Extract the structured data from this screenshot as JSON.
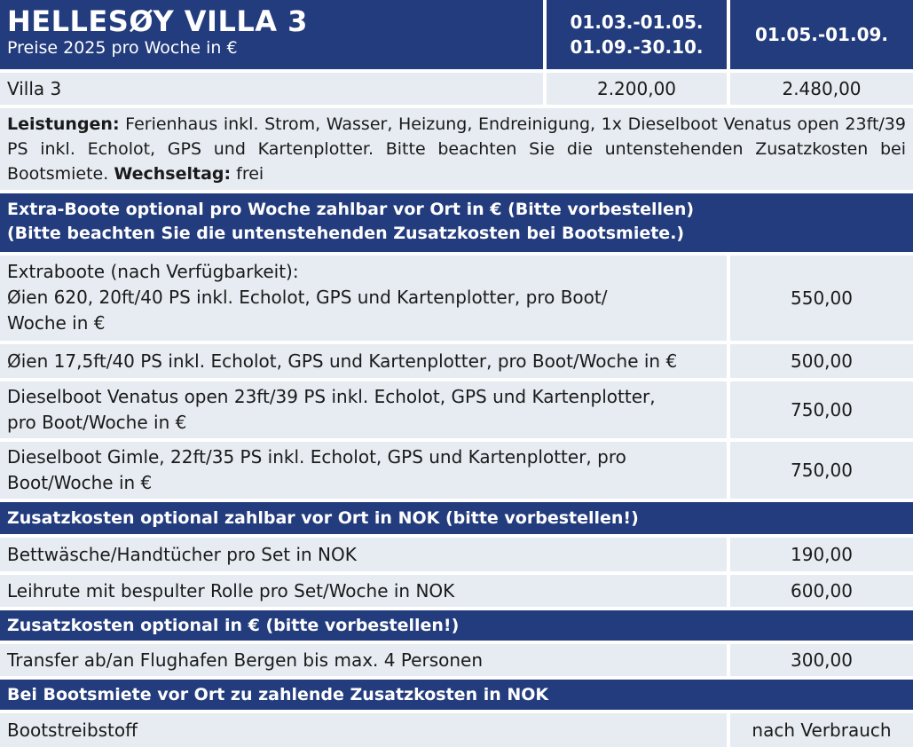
{
  "header": {
    "title": "HELLESØY VILLA 3",
    "subtitle": "Preise 2025 pro Woche in €",
    "season1_line1": "01.03.-01.05.",
    "season1_line2": "01.09.-30.10.",
    "season2": "01.05.-01.09."
  },
  "villa": {
    "label": "Villa 3",
    "price1": "2.200,00",
    "price2": "2.480,00"
  },
  "leistungen": {
    "label": "Leistungen:",
    "text": " Ferienhaus inkl. Strom, Wasser, Heizung, Endreinigung, 1x Dieselboot Venatus open 23ft/39 PS inkl. Echolot, GPS und Kartenplotter. Bitte beachten Sie die untenstehenden Zusatzkosten bei Bootsmiete. ",
    "wechsel_label": "Wechseltag:",
    "wechsel_value": " frei"
  },
  "extra_boote": {
    "heading_line1": "Extra-Boote optional pro Woche zahlbar vor Ort in € (Bitte vorbestellen)",
    "heading_line2": "(Bitte beachten Sie die untenstehenden Zusatzkosten bei Bootsmiete.)",
    "items": [
      {
        "line1": "Extraboote (nach Verfügbarkeit):",
        "line2": "Øien 620, 20ft/40 PS inkl. Echolot, GPS und Kartenplotter, pro Boot/",
        "line3": "Woche in €",
        "price": "550,00"
      },
      {
        "line1": "Øien 17,5ft/40 PS inkl. Echolot, GPS und Kartenplotter, pro Boot/Woche in €",
        "price": "500,00"
      },
      {
        "line1": "Dieselboot Venatus open 23ft/39 PS inkl. Echolot, GPS und Kartenplotter,",
        "line2": "pro Boot/Woche in €",
        "price": "750,00"
      },
      {
        "line1": "Dieselboot Gimle, 22ft/35 PS inkl. Echolot, GPS und Kartenplotter, pro",
        "line2": "Boot/Woche in €",
        "price": "750,00"
      }
    ]
  },
  "zusatz_nok": {
    "heading": "Zusatzkosten optional zahlbar vor Ort in NOK (bitte vorbestellen!)",
    "items": [
      {
        "label": "Bettwäsche/Handtücher pro Set in NOK",
        "price": "190,00"
      },
      {
        "label": "Leihrute mit bespulter Rolle pro Set/Woche in NOK",
        "price": "600,00"
      }
    ]
  },
  "zusatz_eur": {
    "heading": "Zusatzkosten optional in € (bitte vorbestellen!)",
    "items": [
      {
        "label": "Transfer ab/an Flughafen Bergen bis max. 4 Personen",
        "price": "300,00"
      }
    ]
  },
  "bootsmiete": {
    "heading": "Bei Bootsmiete vor Ort zu zahlende Zusatzkosten in NOK",
    "items": [
      {
        "label": "Bootstreibstoff",
        "price": "nach Verbrauch"
      }
    ]
  }
}
